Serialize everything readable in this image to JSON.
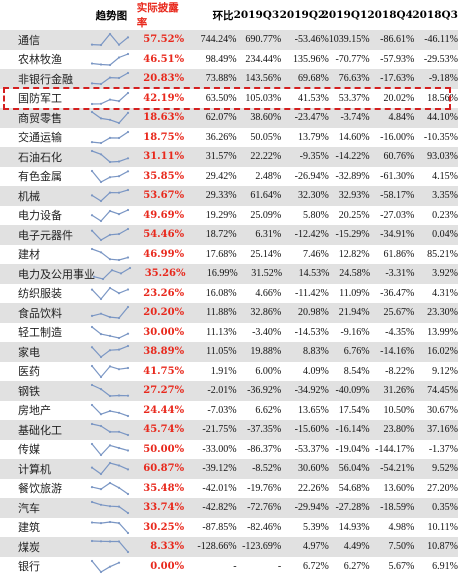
{
  "headers": {
    "trend": "趋势图",
    "rate": "实际披露率",
    "hb": "环比",
    "q3_2019": "2019Q3",
    "q2_2019": "2019Q2",
    "q1_2019": "2019Q1",
    "q4_2018": "2018Q4",
    "q3_2018": "2018Q3"
  },
  "colors": {
    "rate_text": "#e8281c",
    "row_shade": "#e1e1e1",
    "highlight_border": "#d42020",
    "sparkline": "#7a96c4"
  },
  "highlighted_row": "国防军工",
  "rows": [
    {
      "name": "通信",
      "rate": "57.52%",
      "hb": "744.24%",
      "q3_2019": "690.77%",
      "q2_2019": "-53.46%",
      "q1_2019": "1039.15%",
      "q4_2018": "-86.61%",
      "q3_2018": "-46.11%"
    },
    {
      "name": "农林牧渔",
      "rate": "46.51%",
      "hb": "98.49%",
      "q3_2019": "234.44%",
      "q2_2019": "135.96%",
      "q1_2019": "-70.77%",
      "q4_2018": "-57.93%",
      "q3_2018": "-29.53%"
    },
    {
      "name": "非银行金融",
      "rate": "20.83%",
      "hb": "73.88%",
      "q3_2019": "143.56%",
      "q2_2019": "69.68%",
      "q1_2019": "76.63%",
      "q4_2018": "-17.63%",
      "q3_2018": "-9.18%"
    },
    {
      "name": "国防军工",
      "rate": "42.19%",
      "hb": "63.50%",
      "q3_2019": "105.03%",
      "q2_2019": "41.53%",
      "q1_2019": "53.37%",
      "q4_2018": "20.02%",
      "q3_2018": "18.56%"
    },
    {
      "name": "商贸零售",
      "rate": "18.63%",
      "hb": "62.07%",
      "q3_2019": "38.60%",
      "q2_2019": "-23.47%",
      "q1_2019": "-3.74%",
      "q4_2018": "4.84%",
      "q3_2018": "44.10%"
    },
    {
      "name": "交通运输",
      "rate": "18.75%",
      "hb": "36.26%",
      "q3_2019": "50.05%",
      "q2_2019": "13.79%",
      "q1_2019": "14.60%",
      "q4_2018": "-16.00%",
      "q3_2018": "-10.35%"
    },
    {
      "name": "石油石化",
      "rate": "31.11%",
      "hb": "31.57%",
      "q3_2019": "22.22%",
      "q2_2019": "-9.35%",
      "q1_2019": "-14.22%",
      "q4_2018": "60.76%",
      "q3_2018": "93.03%"
    },
    {
      "name": "有色金属",
      "rate": "35.85%",
      "hb": "29.42%",
      "q3_2019": "2.48%",
      "q2_2019": "-26.94%",
      "q1_2019": "-32.89%",
      "q4_2018": "-61.30%",
      "q3_2018": "4.15%"
    },
    {
      "name": "机械",
      "rate": "53.67%",
      "hb": "29.33%",
      "q3_2019": "61.64%",
      "q2_2019": "32.30%",
      "q1_2019": "32.93%",
      "q4_2018": "-58.17%",
      "q3_2018": "3.35%"
    },
    {
      "name": "电力设备",
      "rate": "49.69%",
      "hb": "19.29%",
      "q3_2019": "25.09%",
      "q2_2019": "5.80%",
      "q1_2019": "20.25%",
      "q4_2018": "-27.03%",
      "q3_2018": "0.23%"
    },
    {
      "name": "电子元器件",
      "rate": "54.46%",
      "hb": "18.72%",
      "q3_2019": "6.31%",
      "q2_2019": "-12.42%",
      "q1_2019": "-15.29%",
      "q4_2018": "-34.91%",
      "q3_2018": "0.04%"
    },
    {
      "name": "建材",
      "rate": "46.99%",
      "hb": "17.68%",
      "q3_2019": "25.14%",
      "q2_2019": "7.46%",
      "q1_2019": "12.82%",
      "q4_2018": "61.86%",
      "q3_2018": "85.21%"
    },
    {
      "name": "电力及公用事业",
      "rate": "35.26%",
      "hb": "16.99%",
      "q3_2019": "31.52%",
      "q2_2019": "14.53%",
      "q1_2019": "24.58%",
      "q4_2018": "-3.31%",
      "q3_2018": "3.92%"
    },
    {
      "name": "纺织服装",
      "rate": "23.26%",
      "hb": "16.08%",
      "q3_2019": "4.66%",
      "q2_2019": "-11.42%",
      "q1_2019": "11.09%",
      "q4_2018": "-36.47%",
      "q3_2018": "4.31%"
    },
    {
      "name": "食品饮料",
      "rate": "20.20%",
      "hb": "11.88%",
      "q3_2019": "32.86%",
      "q2_2019": "20.98%",
      "q1_2019": "21.94%",
      "q4_2018": "25.67%",
      "q3_2018": "23.30%"
    },
    {
      "name": "轻工制造",
      "rate": "30.00%",
      "hb": "11.13%",
      "q3_2019": "-3.40%",
      "q2_2019": "-14.53%",
      "q1_2019": "-9.16%",
      "q4_2018": "-4.35%",
      "q3_2018": "13.99%"
    },
    {
      "name": "家电",
      "rate": "38.89%",
      "hb": "11.05%",
      "q3_2019": "19.88%",
      "q2_2019": "8.83%",
      "q1_2019": "6.76%",
      "q4_2018": "-14.16%",
      "q3_2018": "16.02%"
    },
    {
      "name": "医药",
      "rate": "41.75%",
      "hb": "1.91%",
      "q3_2019": "6.00%",
      "q2_2019": "4.09%",
      "q1_2019": "8.54%",
      "q4_2018": "-8.22%",
      "q3_2018": "9.12%"
    },
    {
      "name": "钢铁",
      "rate": "27.27%",
      "hb": "-2.01%",
      "q3_2019": "-36.92%",
      "q2_2019": "-34.92%",
      "q1_2019": "-40.09%",
      "q4_2018": "31.26%",
      "q3_2018": "74.45%"
    },
    {
      "name": "房地产",
      "rate": "24.44%",
      "hb": "-7.03%",
      "q3_2019": "6.62%",
      "q2_2019": "13.65%",
      "q1_2019": "17.54%",
      "q4_2018": "10.50%",
      "q3_2018": "30.67%"
    },
    {
      "name": "基础化工",
      "rate": "45.74%",
      "hb": "-21.75%",
      "q3_2019": "-37.35%",
      "q2_2019": "-15.60%",
      "q1_2019": "-16.14%",
      "q4_2018": "23.80%",
      "q3_2018": "37.16%"
    },
    {
      "name": "传媒",
      "rate": "50.00%",
      "hb": "-33.00%",
      "q3_2019": "-86.37%",
      "q2_2019": "-53.37%",
      "q1_2019": "-19.04%",
      "q4_2018": "-144.17%",
      "q3_2018": "-1.37%"
    },
    {
      "name": "计算机",
      "rate": "60.87%",
      "hb": "-39.12%",
      "q3_2019": "-8.52%",
      "q2_2019": "30.60%",
      "q1_2019": "56.04%",
      "q4_2018": "-54.21%",
      "q3_2018": "9.52%"
    },
    {
      "name": "餐饮旅游",
      "rate": "35.48%",
      "hb": "-42.01%",
      "q3_2019": "-19.76%",
      "q2_2019": "22.26%",
      "q1_2019": "54.68%",
      "q4_2018": "13.60%",
      "q3_2018": "27.20%"
    },
    {
      "name": "汽车",
      "rate": "33.74%",
      "hb": "-42.82%",
      "q3_2019": "-72.76%",
      "q2_2019": "-29.94%",
      "q1_2019": "-27.28%",
      "q4_2018": "-18.59%",
      "q3_2018": "0.35%"
    },
    {
      "name": "建筑",
      "rate": "30.25%",
      "hb": "-87.85%",
      "q3_2019": "-82.46%",
      "q2_2019": "5.39%",
      "q1_2019": "14.93%",
      "q4_2018": "4.98%",
      "q3_2018": "10.11%"
    },
    {
      "name": "煤炭",
      "rate": "8.33%",
      "hb": "-128.66%",
      "q3_2019": "-123.69%",
      "q2_2019": "4.97%",
      "q1_2019": "4.49%",
      "q4_2018": "7.50%",
      "q3_2018": "10.87%"
    },
    {
      "name": "银行",
      "rate": "0.00%",
      "hb": "-",
      "q3_2019": "-",
      "q2_2019": "6.72%",
      "q1_2019": "6.27%",
      "q4_2018": "5.67%",
      "q3_2018": "6.91%"
    }
  ]
}
